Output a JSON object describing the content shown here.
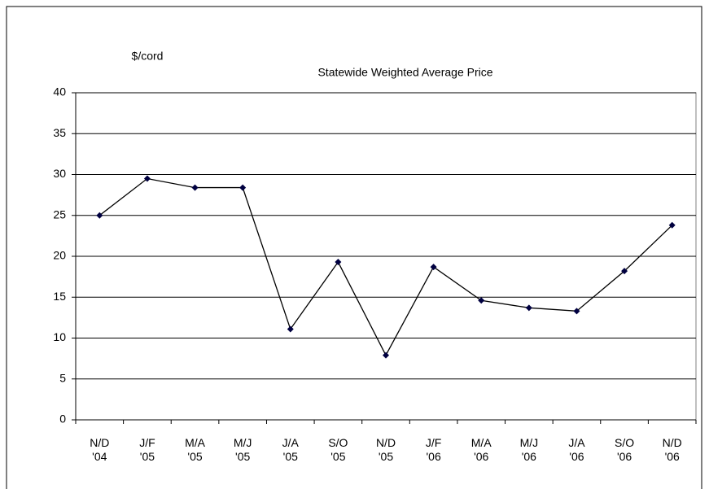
{
  "chart_data": {
    "type": "line",
    "title": "Statewide Weighted Average Price",
    "y_label": "$/cord",
    "categories": [
      "N/D\n'04",
      "J/F\n'05",
      "M/A\n'05",
      "M/J\n'05",
      "J/A\n'05",
      "S/O\n'05",
      "N/D\n'05",
      "J/F\n'06",
      "M/A\n'06",
      "M/J\n'06",
      "J/A\n'06",
      "S/O\n'06",
      "N/D\n'06"
    ],
    "values": [
      25.0,
      29.5,
      28.4,
      28.4,
      11.1,
      19.3,
      7.9,
      18.7,
      14.6,
      13.7,
      13.3,
      18.2,
      23.8
    ],
    "color": "#000000",
    "marker_color": "#000040",
    "ylim": [
      0,
      40
    ],
    "yticks": [
      0,
      5,
      10,
      15,
      20,
      25,
      30,
      35,
      40
    ],
    "grid": true
  }
}
